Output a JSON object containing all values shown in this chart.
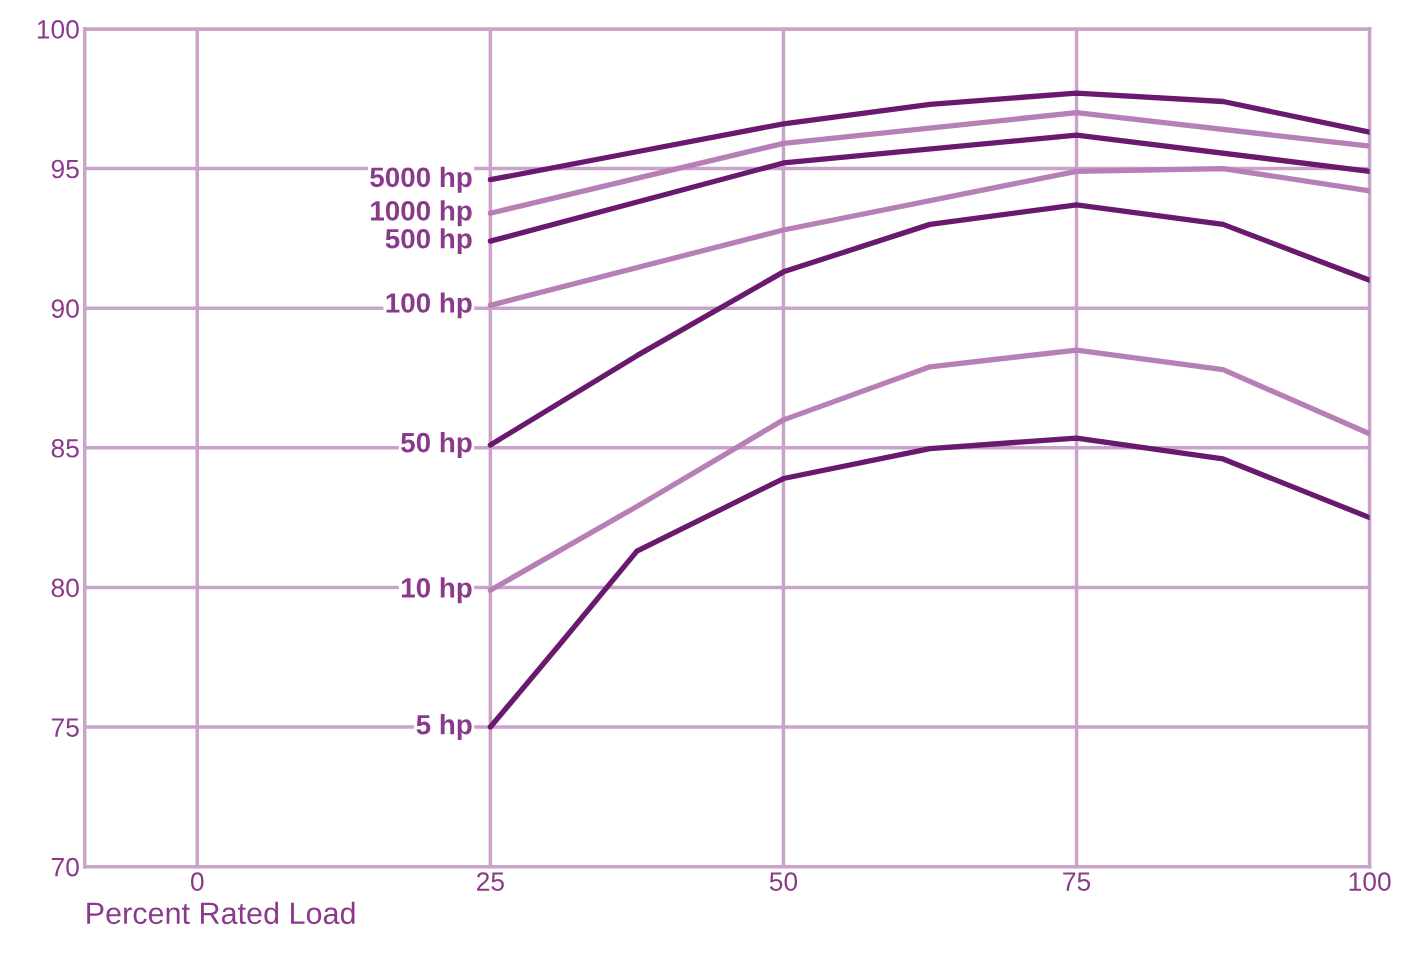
{
  "chart_data": {
    "type": "line",
    "xlabel": "Percent Rated Load",
    "xlim": [
      -9.6,
      100
    ],
    "xticks": [
      0,
      25,
      50,
      75,
      100
    ],
    "ylim": [
      70,
      100
    ],
    "yticks": [
      70,
      75,
      80,
      85,
      90,
      95,
      100
    ],
    "grid": true,
    "legend": false,
    "marker": "none",
    "line_style": "solid",
    "series": [
      {
        "name": "5000 hp",
        "color": "#6a1a6e",
        "x": [
          25,
          37.5,
          50,
          62.5,
          75,
          87.5,
          100
        ],
        "values": [
          94.6,
          95.6,
          96.6,
          97.3,
          97.7,
          97.4,
          96.3
        ]
      },
      {
        "name": "1000 hp",
        "color": "#b77fb5",
        "x": [
          25,
          50,
          75,
          100
        ],
        "values": [
          93.4,
          95.9,
          97.0,
          95.8
        ]
      },
      {
        "name": "500 hp",
        "color": "#6a1a6e",
        "x": [
          25,
          50,
          75,
          100
        ],
        "values": [
          92.4,
          95.2,
          96.2,
          94.9
        ]
      },
      {
        "name": "100 hp",
        "color": "#b77fb5",
        "x": [
          25,
          50,
          75,
          87.5,
          100
        ],
        "values": [
          90.1,
          92.8,
          94.9,
          95.0,
          94.2
        ]
      },
      {
        "name": "50 hp",
        "color": "#6a1a6e",
        "x": [
          25,
          37.5,
          50,
          62.5,
          75,
          87.5,
          100
        ],
        "values": [
          85.1,
          88.3,
          91.3,
          93.0,
          93.7,
          93.0,
          91.0
        ]
      },
      {
        "name": "10 hp",
        "color": "#b77fb5",
        "x": [
          25,
          37.5,
          50,
          62.5,
          75,
          87.5,
          100
        ],
        "values": [
          79.9,
          82.9,
          86.0,
          87.9,
          88.5,
          87.8,
          85.5
        ]
      },
      {
        "name": "5 hp",
        "color": "#6a1a6e",
        "x": [
          25,
          31,
          37.5,
          50,
          62.5,
          75,
          87.5,
          100
        ],
        "values": [
          75.0,
          78.0,
          81.3,
          83.9,
          84.97,
          85.35,
          84.6,
          82.5
        ]
      }
    ]
  }
}
